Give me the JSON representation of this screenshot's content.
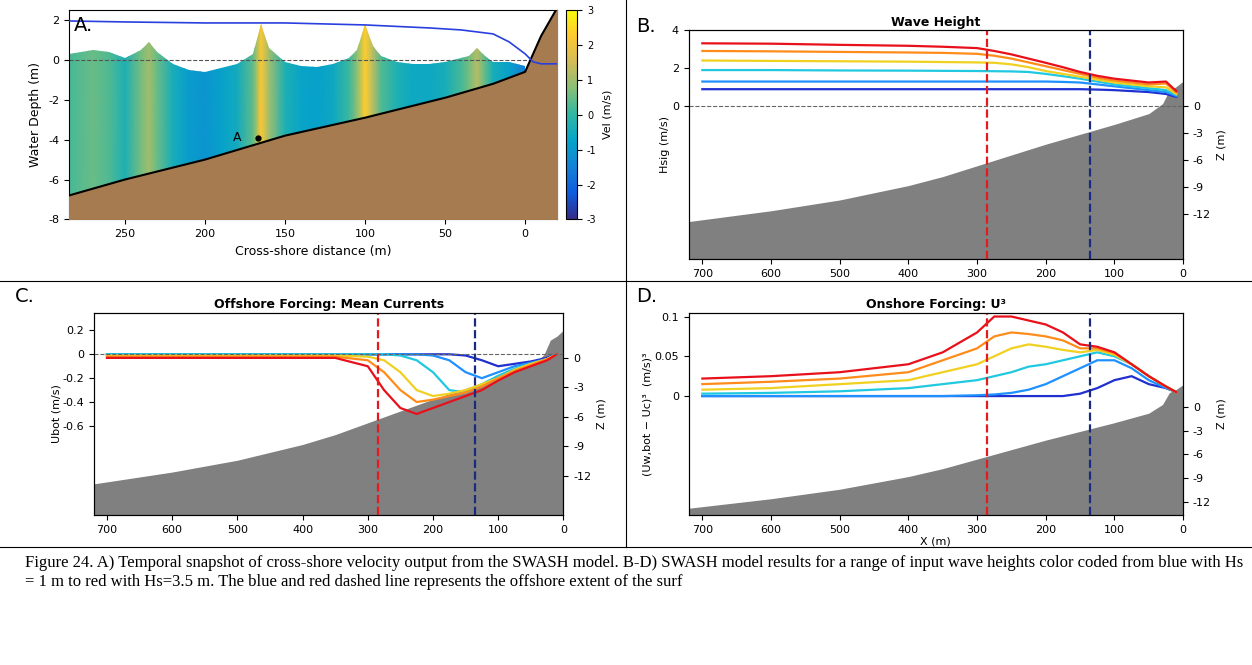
{
  "caption": "Figure 24. A) Temporal snapshot of cross-shore velocity output from the SWASH model. B-D) SWASH model results for a range of input wave heights color coded from blue with Hs = 1 m to red with Hs=3.5 m. The blue and red dashed line represents the offshore extent of the surf",
  "chart_data": [
    {
      "type": "field",
      "label": "A.",
      "xlabel": "Cross-shore distance (m)",
      "ylabel": "Water Depth (m)",
      "xlim": [
        285,
        -20
      ],
      "xticks": [
        250,
        200,
        150,
        100,
        50,
        0
      ],
      "ylim": [
        -8,
        2.5
      ],
      "yticks": [
        -8,
        -6,
        -4,
        -2,
        0,
        2
      ],
      "colorbar": {
        "label": "Vel (m/s)",
        "range": [
          -3,
          3
        ],
        "ticks": [
          -3,
          -2,
          -1,
          0,
          1,
          2,
          3
        ]
      },
      "surface": {
        "x": [
          285,
          270,
          260,
          250,
          240,
          235,
          230,
          220,
          210,
          200,
          190,
          180,
          170,
          165,
          160,
          150,
          140,
          130,
          120,
          110,
          105,
          100,
          95,
          90,
          80,
          70,
          60,
          50,
          40,
          35,
          30,
          25,
          20,
          10,
          5,
          0
        ],
        "eta": [
          0.3,
          0.5,
          0.4,
          0.1,
          0.5,
          0.9,
          0.4,
          -0.2,
          -0.5,
          -0.6,
          -0.4,
          -0.2,
          0.3,
          1.8,
          0.6,
          -0.1,
          -0.3,
          -0.35,
          -0.2,
          0.1,
          0.5,
          1.8,
          0.7,
          0.2,
          -0.1,
          -0.2,
          -0.2,
          -0.1,
          0.1,
          0.2,
          0.6,
          0.2,
          -0.1,
          -0.1,
          -0.2,
          -0.3
        ],
        "u": [
          0.2,
          0.5,
          0.3,
          -0.3,
          0.6,
          1.0,
          0.5,
          -0.4,
          -0.9,
          -1.1,
          -0.8,
          -0.5,
          0.4,
          2.2,
          1.0,
          -0.3,
          -0.7,
          -0.8,
          -0.6,
          0.1,
          0.8,
          2.3,
          1.2,
          0.3,
          -0.3,
          -0.6,
          -0.6,
          -0.4,
          0.2,
          0.6,
          1.2,
          0.4,
          -0.4,
          -0.8,
          -1.2,
          -1.5
        ]
      },
      "bed": {
        "x": [
          285,
          250,
          200,
          150,
          100,
          50,
          20,
          0,
          -10,
          -20
        ],
        "z": [
          -6.8,
          -6.0,
          -5.0,
          -3.8,
          -2.9,
          -1.9,
          -1.2,
          -0.6,
          1.2,
          2.6
        ],
        "color": "#a67b50"
      },
      "series": [
        {
          "type": "line",
          "color": "#2a3fe0",
          "x": [
            285,
            250,
            200,
            150,
            100,
            60,
            40,
            20,
            10,
            0,
            -5,
            -10,
            -20
          ],
          "values": [
            1.95,
            1.9,
            1.85,
            1.85,
            1.75,
            1.6,
            1.5,
            1.3,
            0.9,
            0.3,
            -0.1,
            -0.2,
            -0.2
          ]
        }
      ],
      "hlines": [
        0
      ],
      "points": [
        {
          "x": 167,
          "y": -3.9,
          "label": "A"
        }
      ]
    },
    {
      "type": "line",
      "label": "B.",
      "title": "Wave Height",
      "ylabel": "Hsig (m/s)",
      "y2label": "Z (m)",
      "x": [
        700,
        600,
        500,
        400,
        350,
        300,
        275,
        250,
        225,
        200,
        175,
        150,
        125,
        100,
        75,
        50,
        25,
        10
      ],
      "xlim": [
        720,
        0
      ],
      "xticks": [
        700,
        600,
        500,
        400,
        300,
        200,
        100,
        0
      ],
      "ylim": [
        -8,
        4
      ],
      "yticks": [
        0,
        2,
        4
      ],
      "y2lim": [
        -17,
        8.5
      ],
      "y2ticks": [
        -12,
        -9,
        -6,
        -3,
        0
      ],
      "hlines": [
        0
      ],
      "vlines": [
        {
          "x": 285,
          "color": "#e41a1c"
        },
        {
          "x": 135,
          "color": "#1a2a80"
        }
      ],
      "series": [
        {
          "color": "#1f2fd0",
          "values": [
            0.9,
            0.9,
            0.9,
            0.9,
            0.9,
            0.9,
            0.9,
            0.9,
            0.9,
            0.9,
            0.9,
            0.9,
            0.88,
            0.85,
            0.8,
            0.75,
            0.65,
            0.5
          ]
        },
        {
          "color": "#1e90ff",
          "values": [
            1.3,
            1.3,
            1.3,
            1.3,
            1.3,
            1.3,
            1.3,
            1.3,
            1.3,
            1.3,
            1.28,
            1.25,
            1.15,
            1.05,
            0.95,
            0.85,
            0.75,
            0.55
          ]
        },
        {
          "color": "#20c8e0",
          "values": [
            1.9,
            1.9,
            1.88,
            1.87,
            1.86,
            1.85,
            1.84,
            1.83,
            1.8,
            1.7,
            1.58,
            1.45,
            1.3,
            1.15,
            1.05,
            0.95,
            0.85,
            0.6
          ]
        },
        {
          "color": "#f0d020",
          "values": [
            2.4,
            2.38,
            2.36,
            2.34,
            2.32,
            2.3,
            2.28,
            2.2,
            2.05,
            1.85,
            1.7,
            1.55,
            1.4,
            1.25,
            1.15,
            1.05,
            1.0,
            0.65
          ]
        },
        {
          "color": "#ff8c1a",
          "values": [
            2.9,
            2.88,
            2.85,
            2.82,
            2.8,
            2.75,
            2.65,
            2.5,
            2.3,
            2.1,
            1.9,
            1.7,
            1.5,
            1.35,
            1.25,
            1.15,
            1.2,
            0.75
          ]
        },
        {
          "color": "#e8101a",
          "values": [
            3.3,
            3.28,
            3.22,
            3.17,
            3.12,
            3.05,
            2.9,
            2.72,
            2.5,
            2.28,
            2.05,
            1.8,
            1.6,
            1.45,
            1.35,
            1.25,
            1.3,
            0.8
          ]
        },
        {
          "type": "area",
          "axis": "y2",
          "color": "#808080",
          "x": [
            720,
            700,
            600,
            500,
            400,
            350,
            300,
            250,
            200,
            150,
            100,
            50,
            30,
            20,
            10,
            0
          ],
          "values": [
            -12.8,
            -12.6,
            -11.6,
            -10.4,
            -8.8,
            -7.8,
            -6.6,
            -5.4,
            -4.2,
            -3.1,
            -2.0,
            -0.8,
            0.3,
            1.8,
            2.2,
            2.8
          ]
        }
      ]
    },
    {
      "type": "line",
      "label": "C.",
      "title": "Offshore Forcing: Mean Currents",
      "ylabel": "Ubot (m/s)",
      "y2label": "Z (m)",
      "x": [
        700,
        600,
        500,
        400,
        350,
        300,
        275,
        250,
        225,
        200,
        175,
        150,
        125,
        100,
        75,
        50,
        25,
        10
      ],
      "xlim": [
        720,
        0
      ],
      "xticks": [
        700,
        600,
        500,
        400,
        300,
        200,
        100,
        0
      ],
      "ylim": [
        -1.35,
        0.35
      ],
      "yticks": [
        -0.6,
        -0.4,
        -0.2,
        0,
        0.2
      ],
      "y2lim": [
        -16,
        4.6
      ],
      "y2ticks": [
        -12,
        -9,
        -6,
        -3,
        0
      ],
      "hlines": [
        0
      ],
      "vlines": [
        {
          "x": 285,
          "color": "#e41a1c"
        },
        {
          "x": 135,
          "color": "#1a2a80"
        }
      ],
      "series": [
        {
          "color": "#1f2fd0",
          "values": [
            0,
            0,
            0,
            0,
            0,
            0,
            0,
            0,
            0,
            0,
            0,
            -0.01,
            -0.05,
            -0.1,
            -0.08,
            -0.06,
            -0.03,
            0
          ]
        },
        {
          "color": "#1e90ff",
          "values": [
            0,
            0,
            0,
            0,
            0,
            0,
            0,
            0,
            0,
            -0.01,
            -0.05,
            -0.15,
            -0.2,
            -0.15,
            -0.1,
            -0.07,
            -0.04,
            0
          ]
        },
        {
          "color": "#20c8e0",
          "values": [
            0,
            0,
            0,
            0,
            0,
            0,
            0,
            -0.01,
            -0.05,
            -0.15,
            -0.3,
            -0.32,
            -0.25,
            -0.18,
            -0.12,
            -0.08,
            -0.04,
            0
          ]
        },
        {
          "color": "#f0d020",
          "values": [
            -0.01,
            -0.01,
            -0.01,
            -0.01,
            -0.01,
            -0.02,
            -0.05,
            -0.15,
            -0.3,
            -0.35,
            -0.33,
            -0.3,
            -0.25,
            -0.2,
            -0.13,
            -0.08,
            -0.04,
            0
          ]
        },
        {
          "color": "#ff8c1a",
          "values": [
            -0.02,
            -0.02,
            -0.02,
            -0.02,
            -0.02,
            -0.05,
            -0.15,
            -0.3,
            -0.4,
            -0.38,
            -0.35,
            -0.32,
            -0.27,
            -0.2,
            -0.14,
            -0.09,
            -0.04,
            0
          ]
        },
        {
          "color": "#e8101a",
          "values": [
            -0.03,
            -0.03,
            -0.03,
            -0.03,
            -0.03,
            -0.1,
            -0.3,
            -0.45,
            -0.5,
            -0.45,
            -0.4,
            -0.35,
            -0.3,
            -0.22,
            -0.15,
            -0.1,
            -0.05,
            0
          ]
        },
        {
          "type": "area",
          "axis": "y2",
          "color": "#808080",
          "x": [
            720,
            700,
            600,
            500,
            400,
            350,
            300,
            250,
            200,
            150,
            100,
            50,
            30,
            20,
            10,
            0
          ],
          "values": [
            -12.8,
            -12.6,
            -11.6,
            -10.4,
            -8.8,
            -7.8,
            -6.6,
            -5.4,
            -4.2,
            -3.1,
            -2.0,
            -0.8,
            0.3,
            1.8,
            2.2,
            2.8
          ]
        }
      ]
    },
    {
      "type": "line",
      "label": "D.",
      "title": "Onshore Forcing: U³",
      "ylabel": "(Uw,bot − Uc)³  (m/s)³",
      "y2label": "Z (m)",
      "xlabel": "X (m)",
      "x": [
        700,
        600,
        500,
        400,
        350,
        300,
        275,
        250,
        225,
        200,
        175,
        150,
        125,
        100,
        75,
        50,
        25,
        10
      ],
      "xlim": [
        720,
        0
      ],
      "xticks": [
        700,
        600,
        500,
        400,
        300,
        200,
        100,
        0
      ],
      "ylim": [
        -0.15,
        0.105
      ],
      "yticks": [
        0,
        0.05,
        0.1
      ],
      "y2lim": [
        -13.7,
        11.9
      ],
      "y2ticks": [
        -12,
        -9,
        -6,
        -3,
        0
      ],
      "hlines": [],
      "vlines": [
        {
          "x": 285,
          "color": "#e41a1c"
        },
        {
          "x": 135,
          "color": "#1a2a80"
        }
      ],
      "series": [
        {
          "color": "#1f2fd0",
          "values": [
            0,
            0,
            0,
            0,
            0,
            0,
            0,
            0,
            0,
            0,
            0,
            0.003,
            0.01,
            0.02,
            0.025,
            0.015,
            0.01,
            0.005
          ]
        },
        {
          "color": "#1e90ff",
          "values": [
            0,
            0,
            0,
            0,
            0,
            0.001,
            0.002,
            0.004,
            0.008,
            0.015,
            0.025,
            0.035,
            0.045,
            0.045,
            0.035,
            0.02,
            0.01,
            0.005
          ]
        },
        {
          "color": "#20c8e0",
          "values": [
            0.003,
            0.004,
            0.006,
            0.01,
            0.015,
            0.02,
            0.025,
            0.03,
            0.037,
            0.04,
            0.045,
            0.05,
            0.055,
            0.05,
            0.04,
            0.025,
            0.012,
            0.005
          ]
        },
        {
          "color": "#f0d020",
          "values": [
            0.008,
            0.01,
            0.015,
            0.02,
            0.03,
            0.04,
            0.05,
            0.06,
            0.065,
            0.062,
            0.058,
            0.055,
            0.058,
            0.052,
            0.04,
            0.025,
            0.012,
            0.005
          ]
        },
        {
          "color": "#ff8c1a",
          "values": [
            0.015,
            0.018,
            0.022,
            0.03,
            0.045,
            0.06,
            0.075,
            0.08,
            0.078,
            0.075,
            0.07,
            0.06,
            0.06,
            0.054,
            0.04,
            0.025,
            0.012,
            0.005
          ]
        },
        {
          "color": "#e8101a",
          "values": [
            0.022,
            0.025,
            0.03,
            0.04,
            0.055,
            0.08,
            0.1,
            0.1,
            0.095,
            0.09,
            0.08,
            0.065,
            0.062,
            0.055,
            0.04,
            0.025,
            0.012,
            0.005
          ]
        },
        {
          "type": "area",
          "axis": "y2",
          "color": "#808080",
          "x": [
            720,
            700,
            600,
            500,
            400,
            350,
            300,
            250,
            200,
            150,
            100,
            50,
            30,
            20,
            10,
            0
          ],
          "values": [
            -12.8,
            -12.6,
            -11.6,
            -10.4,
            -8.8,
            -7.8,
            -6.6,
            -5.4,
            -4.2,
            -3.1,
            -2.0,
            -0.8,
            0.3,
            1.8,
            2.2,
            2.8
          ]
        }
      ]
    }
  ]
}
